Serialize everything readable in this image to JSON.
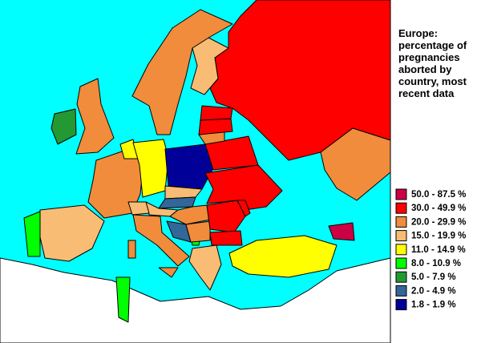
{
  "title": "Europe: percentage of pregnancies aborted by country, most recent data",
  "legend": [
    {
      "label": "50.0 - 87.5 %",
      "color": "#cc0044"
    },
    {
      "label": "30.0 - 49.9 %",
      "color": "#ff0000"
    },
    {
      "label": "20.0 - 29.9 %",
      "color": "#f08c3c"
    },
    {
      "label": "15.0 - 19.9 %",
      "color": "#f8bc74"
    },
    {
      "label": "11.0 - 14.9 %",
      "color": "#ffff00"
    },
    {
      "label": "8.0 - 10.9 %",
      "color": "#00ff00"
    },
    {
      "label": "5.0 - 7.9 %",
      "color": "#229933"
    },
    {
      "label": "2.0 - 4.9 %",
      "color": "#336699"
    },
    {
      "label": "1.8 - 1.9 %",
      "color": "#000099"
    }
  ]
}
